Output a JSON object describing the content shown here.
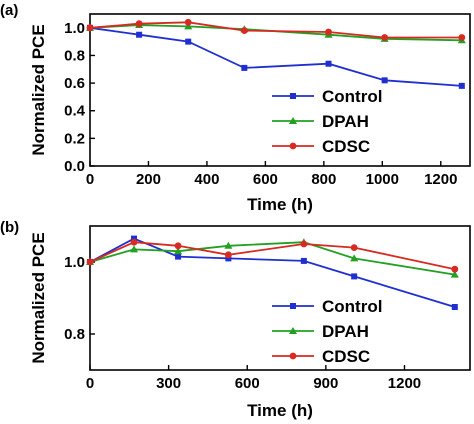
{
  "chart_data": [
    {
      "panel": "(a)",
      "type": "line",
      "xlabel": "Time (h)",
      "ylabel": "Normalized PCE",
      "xlim": [
        0,
        1300
      ],
      "ylim": [
        0.0,
        1.1
      ],
      "xticks": [
        0,
        200,
        400,
        600,
        800,
        1000,
        1200
      ],
      "yticks": [
        0.0,
        0.2,
        0.4,
        0.6,
        0.8,
        1.0
      ],
      "xtick_labels": [
        "0",
        "200",
        "400",
        "600",
        "800",
        "1000",
        "1200"
      ],
      "ytick_labels": [
        "0.0",
        "0.2",
        "0.4",
        "0.6",
        "0.8",
        "1.0"
      ],
      "legend_position": "lower-right",
      "series": [
        {
          "name": "Control",
          "color": "#1f2fd0",
          "marker": "square",
          "x": [
            0,
            168,
            336,
            528,
            816,
            1008,
            1272
          ],
          "y": [
            1.0,
            0.95,
            0.9,
            0.71,
            0.74,
            0.62,
            0.58
          ]
        },
        {
          "name": "DPAH",
          "color": "#22a022",
          "marker": "triangle",
          "x": [
            0,
            168,
            336,
            528,
            816,
            1008,
            1272
          ],
          "y": [
            1.0,
            1.02,
            1.01,
            0.99,
            0.95,
            0.92,
            0.91
          ]
        },
        {
          "name": "CDSC",
          "color": "#d62a22",
          "marker": "circle",
          "x": [
            0,
            168,
            336,
            528,
            816,
            1008,
            1272
          ],
          "y": [
            1.0,
            1.03,
            1.04,
            0.98,
            0.97,
            0.93,
            0.93
          ]
        }
      ]
    },
    {
      "panel": "(b)",
      "type": "line",
      "xlabel": "Time (h)",
      "ylabel": "Normalized PCE",
      "xlim": [
        0,
        1450
      ],
      "ylim": [
        0.7,
        1.1
      ],
      "xticks": [
        0,
        300,
        600,
        900,
        1200
      ],
      "yticks": [
        0.8,
        1.0
      ],
      "xtick_labels": [
        "0",
        "300",
        "600",
        "900",
        "1200"
      ],
      "ytick_labels": [
        "0.8",
        "1.0"
      ],
      "legend_position": "lower-right",
      "series": [
        {
          "name": "Control",
          "color": "#1f2fd0",
          "marker": "square",
          "x": [
            0,
            168,
            336,
            528,
            816,
            1008,
            1392
          ],
          "y": [
            1.0,
            1.065,
            1.015,
            1.01,
            1.003,
            0.96,
            0.875
          ]
        },
        {
          "name": "DPAH",
          "color": "#22a022",
          "marker": "triangle",
          "x": [
            0,
            168,
            336,
            528,
            816,
            1008,
            1392
          ],
          "y": [
            1.0,
            1.035,
            1.03,
            1.045,
            1.055,
            1.01,
            0.965
          ]
        },
        {
          "name": "CDSC",
          "color": "#d62a22",
          "marker": "circle",
          "x": [
            0,
            168,
            336,
            528,
            816,
            1008,
            1392
          ],
          "y": [
            1.0,
            1.055,
            1.045,
            1.02,
            1.05,
            1.04,
            0.98
          ]
        }
      ]
    }
  ]
}
